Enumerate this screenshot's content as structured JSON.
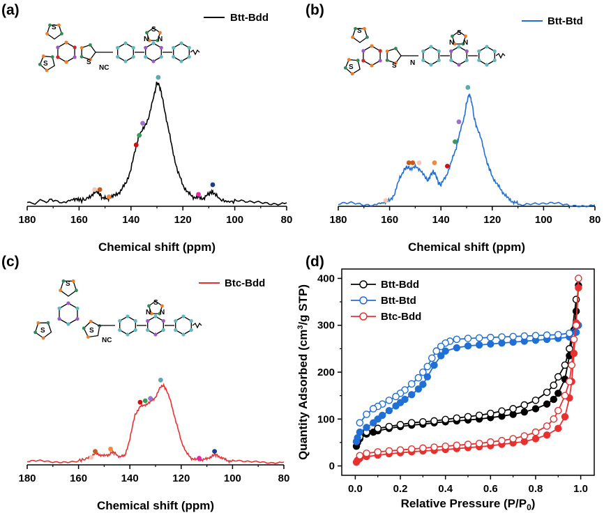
{
  "colors": {
    "btt_bdd": "#000000",
    "btt_btd": "#1f6fd6",
    "btc_bdd": "#e8312f",
    "dot_pink": "#f07fb5",
    "dot_brown": "#c85a1a",
    "dot_orange": "#f08a3a",
    "dot_light": "#f5c6b8",
    "dot_red": "#d01010",
    "dot_green": "#3a9a5a",
    "dot_purple": "#a070d0",
    "dot_teal": "#5aaab0",
    "dot_navy": "#203a8a",
    "dot_magenta": "#ee22aa",
    "atom_teal": "#5fb8bf",
    "atom_purple": "#9b59c7",
    "atom_orange": "#ef7d22",
    "atom_green": "#2e8b57",
    "atom_red": "#d0262a",
    "atom_olive": "#7a7a2a"
  },
  "panels": {
    "a": {
      "letter": "(a)",
      "legend": "Btt-Bdd",
      "xlabel": "Chemical shift (ppm)"
    },
    "b": {
      "letter": "(b)",
      "legend": "Btt-Btd",
      "xlabel": "Chemical shift (ppm)"
    },
    "c": {
      "letter": "(c)",
      "legend": "Btc-Bdd",
      "xlabel": "Chemical shift (ppm)"
    },
    "d": {
      "letter": "(d)"
    }
  },
  "molecule_labels": {
    "S": "S",
    "N": "N",
    "NC": "NC"
  },
  "chart_data": [
    {
      "panel": "a",
      "type": "line",
      "xlabel": "Chemical shift (ppm)",
      "ylabel": "",
      "xlim": [
        180,
        80
      ],
      "xticks": [
        180,
        160,
        140,
        120,
        100,
        80
      ],
      "series": [
        {
          "name": "Btt-Bdd",
          "x": [
            180,
            174,
            170,
            165,
            162,
            160,
            157,
            155,
            153,
            152,
            151,
            149,
            148,
            146,
            144,
            142,
            140,
            138,
            137,
            135,
            133,
            131,
            130,
            129,
            128,
            126,
            124,
            122,
            120,
            118,
            116,
            114,
            112,
            110,
            109,
            108,
            106,
            103,
            100,
            95,
            90,
            85,
            80
          ],
          "y": [
            0.0,
            0.01,
            0.02,
            0.01,
            0.03,
            0.02,
            0.03,
            0.07,
            0.09,
            0.07,
            0.04,
            0.03,
            0.05,
            0.06,
            0.1,
            0.16,
            0.28,
            0.47,
            0.55,
            0.62,
            0.72,
            0.9,
            1.0,
            0.97,
            0.88,
            0.66,
            0.44,
            0.26,
            0.15,
            0.08,
            0.05,
            0.04,
            0.04,
            0.07,
            0.09,
            0.08,
            0.03,
            0.01,
            0.01,
            0.0,
            0.01,
            0.0,
            0.0
          ]
        }
      ],
      "markers": [
        {
          "x": 129.5,
          "y": 1.04,
          "color": "dot_teal"
        },
        {
          "x": 135.5,
          "y": 0.66,
          "color": "dot_purple"
        },
        {
          "x": 136.8,
          "y": 0.56,
          "color": "dot_green"
        },
        {
          "x": 138.0,
          "y": 0.48,
          "color": "dot_red"
        },
        {
          "x": 154.0,
          "y": 0.11,
          "color": "dot_light"
        },
        {
          "x": 152.0,
          "y": 0.11,
          "color": "dot_brown"
        },
        {
          "x": 148.5,
          "y": 0.05,
          "color": "dot_orange"
        },
        {
          "x": 114.0,
          "y": 0.07,
          "color": "dot_magenta"
        },
        {
          "x": 108.5,
          "y": 0.15,
          "color": "dot_navy"
        }
      ]
    },
    {
      "panel": "b",
      "type": "line",
      "xlabel": "Chemical shift (ppm)",
      "ylabel": "",
      "xlim": [
        180,
        80
      ],
      "xticks": [
        180,
        160,
        140,
        120,
        100,
        80
      ],
      "series": [
        {
          "name": "Btt-Btd",
          "x": [
            180,
            175,
            170,
            165,
            162,
            160,
            158,
            156,
            154,
            153,
            152,
            150,
            148,
            146,
            145,
            144,
            143,
            142,
            141,
            140,
            138,
            136,
            134,
            133,
            131,
            130,
            129,
            128,
            127,
            126,
            124,
            122,
            121,
            120,
            118,
            116,
            114,
            112,
            110,
            105,
            100,
            95,
            90,
            85,
            80
          ],
          "y": [
            0.0,
            0.01,
            0.0,
            0.01,
            0.02,
            0.04,
            0.1,
            0.25,
            0.33,
            0.34,
            0.33,
            0.34,
            0.32,
            0.24,
            0.22,
            0.27,
            0.3,
            0.27,
            0.2,
            0.18,
            0.26,
            0.38,
            0.52,
            0.62,
            0.78,
            0.92,
            1.0,
            0.93,
            0.78,
            0.7,
            0.57,
            0.38,
            0.32,
            0.26,
            0.18,
            0.12,
            0.06,
            0.03,
            0.01,
            0.01,
            0.0,
            0.01,
            0.0,
            0.0,
            0.0
          ]
        }
      ],
      "markers": [
        {
          "x": 129.5,
          "y": 1.06,
          "color": "dot_teal"
        },
        {
          "x": 133.0,
          "y": 0.75,
          "color": "dot_purple"
        },
        {
          "x": 134.5,
          "y": 0.57,
          "color": "dot_green"
        },
        {
          "x": 152.5,
          "y": 0.38,
          "color": "dot_brown"
        },
        {
          "x": 151.0,
          "y": 0.38,
          "color": "dot_brown"
        },
        {
          "x": 148.5,
          "y": 0.38,
          "color": "dot_light"
        },
        {
          "x": 142.5,
          "y": 0.38,
          "color": "dot_orange"
        },
        {
          "x": 137.5,
          "y": 0.35,
          "color": "dot_red"
        },
        {
          "x": 161.5,
          "y": 0.04,
          "color": "dot_light"
        }
      ]
    },
    {
      "panel": "c",
      "type": "line",
      "xlabel": "Chemical shift (ppm)",
      "ylabel": "",
      "xlim": [
        180,
        80
      ],
      "xticks": [
        180,
        160,
        140,
        120,
        100,
        80
      ],
      "series": [
        {
          "name": "Btc-Bdd",
          "x": [
            180,
            175,
            170,
            165,
            160,
            157,
            155,
            153,
            152,
            150,
            148,
            147,
            146,
            144,
            142,
            140,
            138,
            136,
            134,
            132,
            130,
            128,
            127,
            126,
            124,
            122,
            120,
            118,
            116,
            114,
            112,
            110,
            108,
            107,
            106,
            104,
            102,
            100,
            95,
            90,
            85,
            80
          ],
          "y": [
            0.0,
            0.01,
            0.0,
            0.01,
            0.02,
            0.04,
            0.08,
            0.11,
            0.1,
            0.08,
            0.1,
            0.13,
            0.12,
            0.07,
            0.08,
            0.3,
            0.62,
            0.72,
            0.75,
            0.78,
            0.85,
            0.98,
            1.0,
            0.96,
            0.78,
            0.52,
            0.28,
            0.12,
            0.05,
            0.03,
            0.03,
            0.04,
            0.08,
            0.1,
            0.09,
            0.05,
            0.02,
            0.01,
            0.0,
            0.01,
            0.0,
            0.0
          ]
        }
      ],
      "markers": [
        {
          "x": 128.0,
          "y": 1.07,
          "color": "dot_teal"
        },
        {
          "x": 132.0,
          "y": 0.83,
          "color": "dot_purple"
        },
        {
          "x": 134.0,
          "y": 0.8,
          "color": "dot_green"
        },
        {
          "x": 136.0,
          "y": 0.78,
          "color": "dot_red"
        },
        {
          "x": 153.5,
          "y": 0.14,
          "color": "dot_brown"
        },
        {
          "x": 147.5,
          "y": 0.17,
          "color": "dot_orange"
        },
        {
          "x": 155.0,
          "y": 0.06,
          "color": "dot_light"
        },
        {
          "x": 113.0,
          "y": 0.05,
          "color": "dot_magenta"
        },
        {
          "x": 107.0,
          "y": 0.14,
          "color": "dot_navy"
        }
      ]
    },
    {
      "panel": "d",
      "type": "scatter",
      "xlabel": "Relative Pressure (P/P0)",
      "xlabel_main": "Relative Pressure (P/P",
      "xlabel_sub": "0",
      "xlabel_end": ")",
      "ylabel": "Quantity Adsorbed (cm3/g STP)",
      "ylabel_pre": "Quantity Adsorbed (cm",
      "ylabel_sup": "3",
      "ylabel_post": "/g STP)",
      "xlim": [
        -0.06,
        1.06
      ],
      "ylim": [
        -20,
        420
      ],
      "xticks": [
        0.0,
        0.2,
        0.4,
        0.6,
        0.8,
        1.0
      ],
      "xtick_labels": [
        "0.0",
        "0.2",
        "0.4",
        "0.6",
        "0.8",
        "1.0"
      ],
      "yticks": [
        0,
        100,
        200,
        300,
        400
      ],
      "legend_position": "top-left",
      "series": [
        {
          "name": "Btt-Bdd",
          "color_key": "btt_bdd",
          "adsorption": {
            "x": [
              0.005,
              0.01,
              0.02,
              0.05,
              0.08,
              0.1,
              0.15,
              0.2,
              0.25,
              0.3,
              0.35,
              0.4,
              0.45,
              0.5,
              0.55,
              0.6,
              0.65,
              0.7,
              0.75,
              0.8,
              0.85,
              0.88,
              0.9,
              0.93,
              0.95,
              0.97,
              0.98,
              0.99
            ],
            "y": [
              42,
              50,
              58,
              68,
              72,
              75,
              80,
              84,
              87,
              89,
              92,
              94,
              96,
              98,
              100,
              103,
              106,
              110,
              115,
              122,
              132,
              142,
              155,
              185,
              235,
              290,
              330,
              385
            ]
          },
          "desorption": {
            "x": [
              0.98,
              0.96,
              0.95,
              0.93,
              0.9,
              0.88,
              0.85,
              0.8,
              0.75,
              0.7,
              0.65,
              0.6,
              0.55,
              0.5,
              0.45,
              0.4,
              0.35,
              0.3,
              0.25,
              0.2,
              0.15,
              0.1,
              0.05,
              0.02
            ],
            "y": [
              355,
              280,
              250,
              215,
              190,
              172,
              157,
              140,
              130,
              122,
              117,
              112,
              108,
              105,
              102,
              99,
              96,
              94,
              92,
              88,
              84,
              80,
              72,
              62
            ]
          }
        },
        {
          "name": "Btt-Btd",
          "color_key": "btt_btd",
          "adsorption": {
            "x": [
              0.005,
              0.01,
              0.02,
              0.05,
              0.08,
              0.1,
              0.12,
              0.15,
              0.18,
              0.2,
              0.22,
              0.25,
              0.28,
              0.3,
              0.32,
              0.35,
              0.38,
              0.4,
              0.45,
              0.5,
              0.55,
              0.6,
              0.65,
              0.7,
              0.75,
              0.8,
              0.85,
              0.9,
              0.95,
              0.98,
              0.99
            ],
            "y": [
              52,
              60,
              72,
              82,
              92,
              100,
              108,
              118,
              128,
              135,
              142,
              152,
              164,
              174,
              190,
              215,
              235,
              245,
              252,
              256,
              258,
              260,
              262,
              264,
              266,
              268,
              270,
              272,
              275,
              285,
              300
            ]
          },
          "desorption": {
            "x": [
              0.98,
              0.95,
              0.9,
              0.85,
              0.8,
              0.75,
              0.7,
              0.65,
              0.6,
              0.55,
              0.5,
              0.45,
              0.42,
              0.4,
              0.38,
              0.36,
              0.34,
              0.32,
              0.3,
              0.28,
              0.25,
              0.22,
              0.2,
              0.18,
              0.15,
              0.12,
              0.1,
              0.08,
              0.05,
              0.02
            ],
            "y": [
              300,
              283,
              280,
              279,
              278,
              277,
              276,
              275,
              274,
              273,
              272,
              270,
              266,
              262,
              255,
              245,
              230,
              212,
              200,
              188,
              175,
              162,
              155,
              148,
              140,
              132,
              127,
              122,
              110,
              92
            ]
          }
        },
        {
          "name": "Btc-Bdd",
          "color_key": "btc_bdd",
          "adsorption": {
            "x": [
              0.005,
              0.01,
              0.02,
              0.05,
              0.1,
              0.15,
              0.2,
              0.25,
              0.3,
              0.35,
              0.4,
              0.45,
              0.5,
              0.55,
              0.6,
              0.65,
              0.7,
              0.75,
              0.8,
              0.85,
              0.9,
              0.93,
              0.95,
              0.96,
              0.97,
              0.98,
              0.99
            ],
            "y": [
              8,
              12,
              16,
              20,
              23,
              26,
              28,
              30,
              32,
              33,
              35,
              37,
              39,
              41,
              43,
              46,
              49,
              52,
              58,
              66,
              80,
              105,
              145,
              180,
              240,
              305,
              380
            ]
          },
          "desorption": {
            "x": [
              0.99,
              0.98,
              0.97,
              0.96,
              0.95,
              0.93,
              0.9,
              0.88,
              0.85,
              0.8,
              0.75,
              0.7,
              0.65,
              0.6,
              0.55,
              0.5,
              0.45,
              0.4,
              0.35,
              0.3,
              0.25,
              0.2,
              0.15,
              0.1,
              0.05,
              0.02
            ],
            "y": [
              400,
              300,
              270,
              215,
              180,
              150,
              118,
              100,
              85,
              72,
              64,
              58,
              54,
              51,
              48,
              46,
              44,
              42,
              40,
              38,
              36,
              34,
              32,
              30,
              27,
              22
            ]
          }
        }
      ]
    }
  ]
}
